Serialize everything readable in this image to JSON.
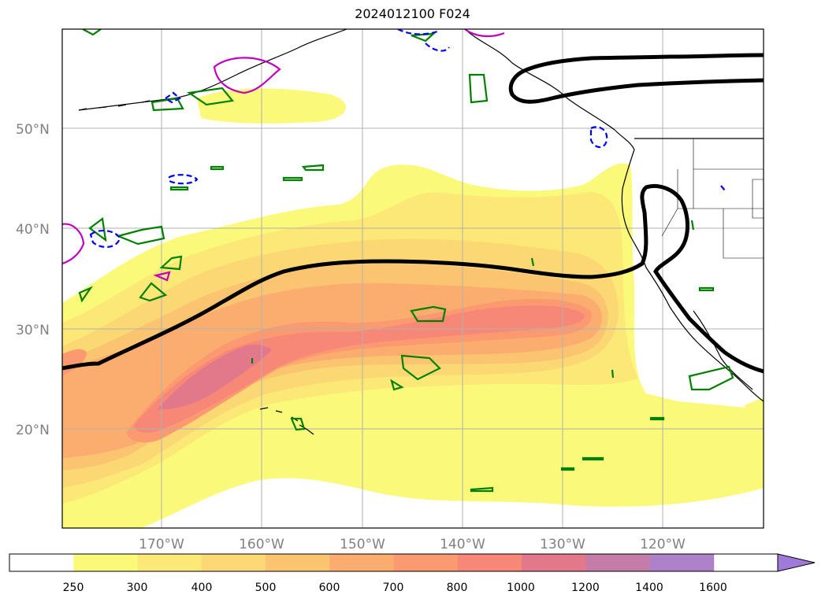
{
  "title": "2024012100 F024",
  "map": {
    "lat_labels": [
      "50°N",
      "40°N",
      "30°N",
      "20°N"
    ],
    "lon_labels": [
      "170°W",
      "160°W",
      "150°W",
      "140°W",
      "130°W",
      "120°W"
    ]
  },
  "colorbar": {
    "levels": [
      "250",
      "300",
      "400",
      "500",
      "600",
      "700",
      "800",
      "1000",
      "1200",
      "1400",
      "1600"
    ],
    "colors": [
      "#ffffff",
      "#fbf97a",
      "#fbe876",
      "#fbd873",
      "#fbc470",
      "#fbad70",
      "#fb9a70",
      "#f78878",
      "#e2798a",
      "#c57ca8",
      "#ad80c8",
      "#a07ad8"
    ],
    "extend": "max"
  },
  "colors": {
    "ivt_lowest": "#fbf97a",
    "ivt_low": "#fbe876",
    "ivt_mid": "#fbc470",
    "ivt_high": "#f78878",
    "ivt_peak": "#e2798a",
    "contour_thick": "#000000",
    "contour_green": "#008000",
    "contour_blue_dashed": "#0000ff",
    "contour_magenta": "#c000c0"
  }
}
